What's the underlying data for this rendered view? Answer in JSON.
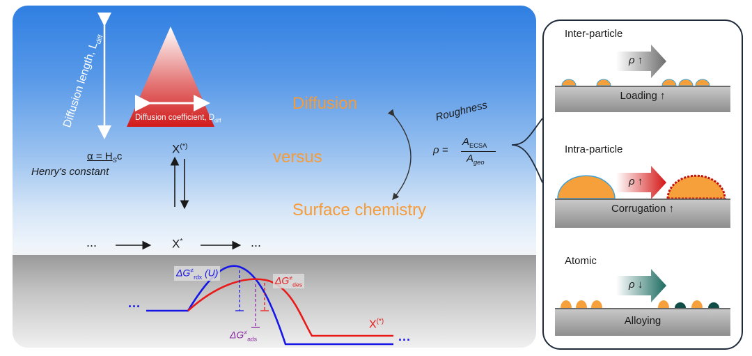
{
  "main": {
    "diffusion_length_label": "Diffusion length, L",
    "diffusion_length_sub": "diff",
    "diffusion_coefficient_label": "Diffusion coefficient, D",
    "diffusion_coefficient_sub": "diff",
    "henry_equation": "α = H",
    "henry_equation_sub": "S",
    "henry_equation_tail": "c",
    "henry_caption": "Henry's constant",
    "x_adsorbed_top": "X",
    "x_adsorbed_top_sup": "(*)",
    "x_star": "X",
    "x_star_sup": "*",
    "ellipsis_left": "...",
    "ellipsis_right": "...",
    "word_diffusion": "Diffusion",
    "word_versus": "versus",
    "word_surface_chemistry": "Surface chemistry",
    "roughness_label": "Roughness",
    "rho_lhs": "ρ =",
    "rho_num": "A",
    "rho_num_sub": "ECSA",
    "rho_den": "A",
    "rho_den_sub": "geo",
    "dg_rdx": "ΔG",
    "dg_rdx_sup": "≠",
    "dg_rdx_sub": "rdx",
    "dg_rdx_tail": " (U)",
    "dg_des": "ΔG",
    "dg_des_sup": "≠",
    "dg_des_sub": "des",
    "dg_ads": "ΔG",
    "dg_ads_sup": "≠",
    "dg_ads_sub": "ads",
    "x_product": "X",
    "x_product_sup": "(*)",
    "energy_dots_left": "···",
    "energy_dots_right": "···"
  },
  "side": {
    "inter_title": "Inter-particle",
    "inter_arrow": "ρ ↑",
    "inter_slab": "Loading ↑",
    "intra_title": "Intra-particle",
    "intra_arrow": "ρ ↑",
    "intra_slab": "Corrugation ↑",
    "atomic_title": "Atomic",
    "atomic_arrow": "ρ ↓",
    "atomic_slab": "Alloying"
  },
  "colors": {
    "orange_text": "#f59b3a",
    "particle_orange": "#f5a03a",
    "particle_teal": "#0f4d46",
    "profile_blue": "#1616e6",
    "profile_red": "#e81a1a",
    "ads_purple": "#8a2aa0"
  }
}
